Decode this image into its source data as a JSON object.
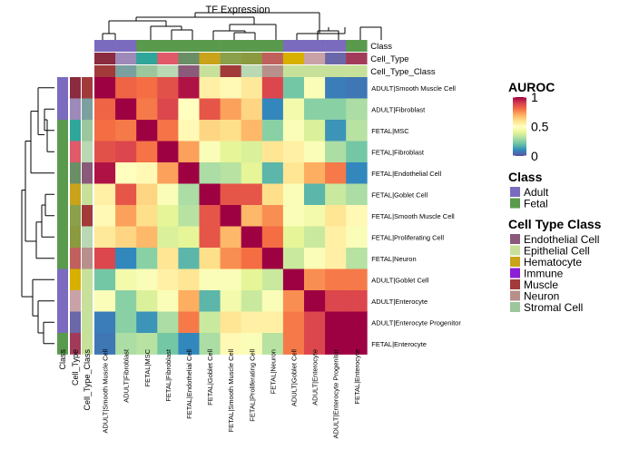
{
  "chart_data": {
    "type": "heatmap",
    "title": "TF Expression",
    "labels": [
      "ADULT|Smooth Muscle Cell",
      "ADULT|Fibroblast",
      "FETAL|MSC",
      "FETAL|Fibroblast",
      "FETAL|Endothelial Cell",
      "FETAL|Goblet Cell",
      "FETAL|Smooth Muscle Cell",
      "FETAL|Proliferating Cell",
      "FETAL|Neuron",
      "ADULT|Goblet Cell",
      "ADULT|Enterocyte",
      "ADULT|Enterocyte Progenitor",
      "FETAL|Enterocyte"
    ],
    "values": [
      [
        1.0,
        0.82,
        0.8,
        0.86,
        0.97,
        0.55,
        0.52,
        0.57,
        0.88,
        0.22,
        0.48,
        0.08,
        0.07
      ],
      [
        0.82,
        1.0,
        0.78,
        0.88,
        0.5,
        0.85,
        0.72,
        0.62,
        0.1,
        0.45,
        0.25,
        0.25,
        0.3
      ],
      [
        0.8,
        0.78,
        1.0,
        0.79,
        0.52,
        0.62,
        0.6,
        0.68,
        0.25,
        0.48,
        0.38,
        0.12,
        0.32
      ],
      [
        0.86,
        0.88,
        0.79,
        1.0,
        0.72,
        0.48,
        0.4,
        0.38,
        0.58,
        0.55,
        0.48,
        0.3,
        0.22
      ],
      [
        0.97,
        0.5,
        0.52,
        0.72,
        1.0,
        0.3,
        0.32,
        0.4,
        0.18,
        0.58,
        0.7,
        0.78,
        0.1
      ],
      [
        0.55,
        0.85,
        0.62,
        0.48,
        0.3,
        1.0,
        0.85,
        0.85,
        0.6,
        0.48,
        0.18,
        0.35,
        0.3
      ],
      [
        0.52,
        0.72,
        0.6,
        0.4,
        0.32,
        0.85,
        1.0,
        0.68,
        0.75,
        0.48,
        0.45,
        0.58,
        0.52
      ],
      [
        0.57,
        0.62,
        0.68,
        0.38,
        0.4,
        0.85,
        0.68,
        1.0,
        0.8,
        0.4,
        0.35,
        0.55,
        0.48
      ],
      [
        0.88,
        0.1,
        0.25,
        0.58,
        0.18,
        0.6,
        0.75,
        0.8,
        1.0,
        0.35,
        0.48,
        0.55,
        0.32
      ],
      [
        0.22,
        0.45,
        0.48,
        0.55,
        0.58,
        0.48,
        0.48,
        0.4,
        0.35,
        1.0,
        0.75,
        0.78,
        0.78
      ],
      [
        0.48,
        0.25,
        0.38,
        0.48,
        0.7,
        0.18,
        0.45,
        0.35,
        0.48,
        0.75,
        1.0,
        0.88,
        0.88
      ],
      [
        0.08,
        0.25,
        0.12,
        0.3,
        0.78,
        0.35,
        0.58,
        0.55,
        0.55,
        0.78,
        0.88,
        1.0,
        1.0
      ],
      [
        0.07,
        0.3,
        0.32,
        0.22,
        0.1,
        0.3,
        0.52,
        0.48,
        0.32,
        0.78,
        0.88,
        1.0,
        1.0
      ]
    ],
    "annotations": {
      "names": [
        "Class",
        "Cell_Type",
        "Cell_Type_Class"
      ],
      "rows": [
        [
          "Adult",
          "#8a2b3f",
          "#a23a3a"
        ],
        [
          "Adult",
          "#9e8ab8",
          "#7aa0a0"
        ],
        [
          "Fetal",
          "#2ea69a",
          "#9cc79c"
        ],
        [
          "Fetal",
          "#e05a6a",
          "#b8d9b3"
        ],
        [
          "Fetal",
          "#6a8f66",
          "#8b5a7a"
        ],
        [
          "Fetal",
          "#c9a31a",
          "#c7e19b"
        ],
        [
          "Fetal",
          "#8aa04a",
          "#a23a3a"
        ],
        [
          "Fetal",
          "#8b9a3e",
          "#b8d9b3"
        ],
        [
          "Fetal",
          "#c0605c",
          "#b7908b"
        ],
        [
          "Adult",
          "#d8b000",
          "#c7e19b"
        ],
        [
          "Adult",
          "#c9a2a8",
          "#c7e19b"
        ],
        [
          "Adult",
          "#6a68a8",
          "#c7e19b"
        ],
        [
          "Fetal",
          "#a23b5a",
          "#c7e19b"
        ]
      ]
    },
    "colorbar": {
      "title": "AUROC",
      "ticks": [
        "1",
        "0.5",
        "0"
      ],
      "range": [
        0,
        1
      ]
    },
    "legends": [
      {
        "title": "Class",
        "items": [
          {
            "label": "Adult",
            "color": "#7b6bbf"
          },
          {
            "label": "Fetal",
            "color": "#5a9a4c"
          }
        ]
      },
      {
        "title": "Cell Type Class",
        "items": [
          {
            "label": "Endothelial Cell",
            "color": "#8b5a7a"
          },
          {
            "label": "Epithelial Cell",
            "color": "#c7e19b"
          },
          {
            "label": "Hematocyte",
            "color": "#c9a31a"
          },
          {
            "label": "Immune",
            "color": "#8a1fd6"
          },
          {
            "label": "Muscle",
            "color": "#a23a3a"
          },
          {
            "label": "Neuron",
            "color": "#b7908b"
          },
          {
            "label": "Stromal Cell",
            "color": "#9cc79c"
          }
        ]
      }
    ],
    "class_colors": {
      "Adult": "#7b6bbf",
      "Fetal": "#5a9a4c"
    },
    "colormap": [
      "#5e4fa2",
      "#3288bd",
      "#66c2a5",
      "#abdda4",
      "#e6f598",
      "#ffffbf",
      "#fee08b",
      "#fdae61",
      "#f46d43",
      "#d53e4f",
      "#9e0142"
    ]
  }
}
